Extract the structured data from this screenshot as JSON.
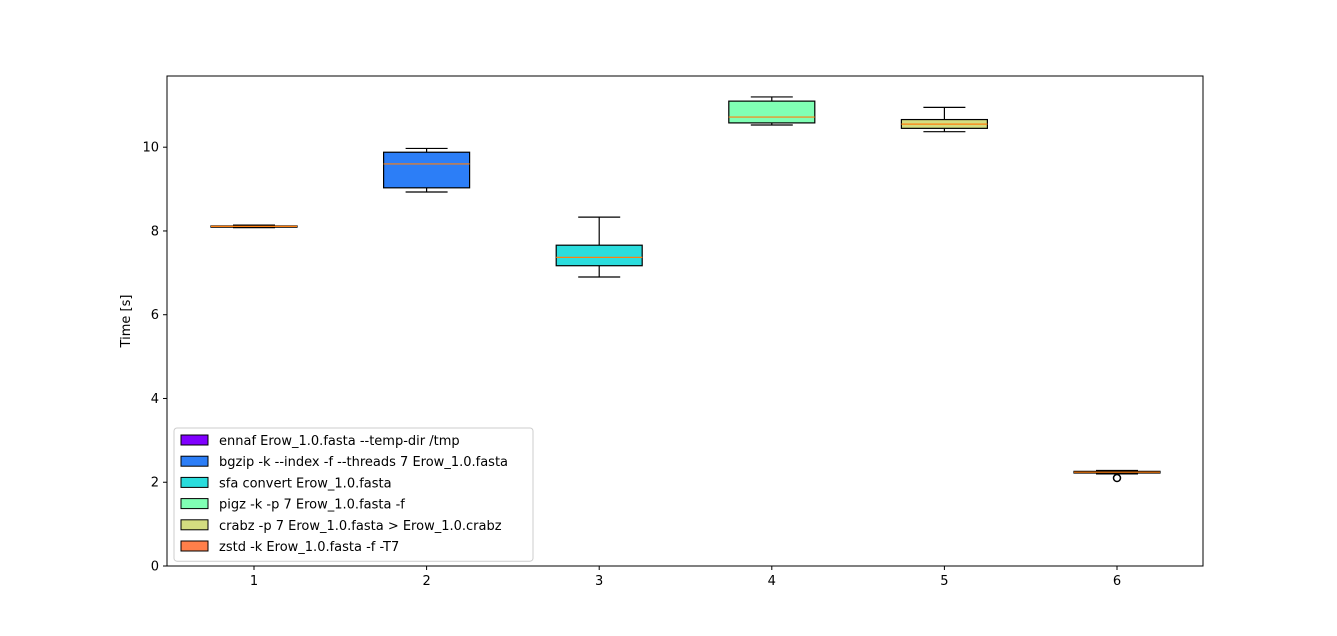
{
  "chart_data": {
    "type": "box",
    "title": "",
    "xlabel": "",
    "ylabel": "Time [s]",
    "ylim": [
      0,
      11.7
    ],
    "yticks": [
      0,
      2,
      4,
      6,
      8,
      10
    ],
    "xticks": [
      "1",
      "2",
      "3",
      "4",
      "5",
      "6"
    ],
    "grid": false,
    "legend_position": "lower-left",
    "median_color": "#ff7f0e",
    "boxes": [
      {
        "x": "1",
        "name": "ennaf Erow_1.0.fasta --temp-dir /tmp",
        "color": "#8000ff",
        "whisker_low": 8.08,
        "q1": 8.09,
        "median": 8.11,
        "q3": 8.12,
        "whisker_high": 8.14,
        "outliers": []
      },
      {
        "x": "2",
        "name": "bgzip -k --index -f --threads 7 Erow_1.0.fasta",
        "color": "#2c7ef7",
        "whisker_low": 8.93,
        "q1": 9.03,
        "median": 9.6,
        "q3": 9.88,
        "whisker_high": 9.97,
        "outliers": []
      },
      {
        "x": "3",
        "name": "sfa convert Erow_1.0.fasta",
        "color": "#2adddd",
        "whisker_low": 6.9,
        "q1": 7.17,
        "median": 7.37,
        "q3": 7.66,
        "whisker_high": 8.33,
        "outliers": []
      },
      {
        "x": "4",
        "name": "pigz -k -p 7 Erow_1.0.fasta -f",
        "color": "#80ffb4",
        "whisker_low": 10.53,
        "q1": 10.58,
        "median": 10.72,
        "q3": 11.1,
        "whisker_high": 11.2,
        "outliers": []
      },
      {
        "x": "5",
        "name": "crabz -p 7 Erow_1.0.fasta > Erow_1.0.crabz",
        "color": "#d4dd80",
        "whisker_low": 10.37,
        "q1": 10.45,
        "median": 10.55,
        "q3": 10.66,
        "whisker_high": 10.95,
        "outliers": []
      },
      {
        "x": "6",
        "name": "zstd -k Erow_1.0.fasta -f -T7",
        "color": "#ff7f4a",
        "whisker_low": 2.2,
        "q1": 2.22,
        "median": 2.24,
        "q3": 2.26,
        "whisker_high": 2.28,
        "outliers": [
          2.1
        ]
      }
    ]
  }
}
